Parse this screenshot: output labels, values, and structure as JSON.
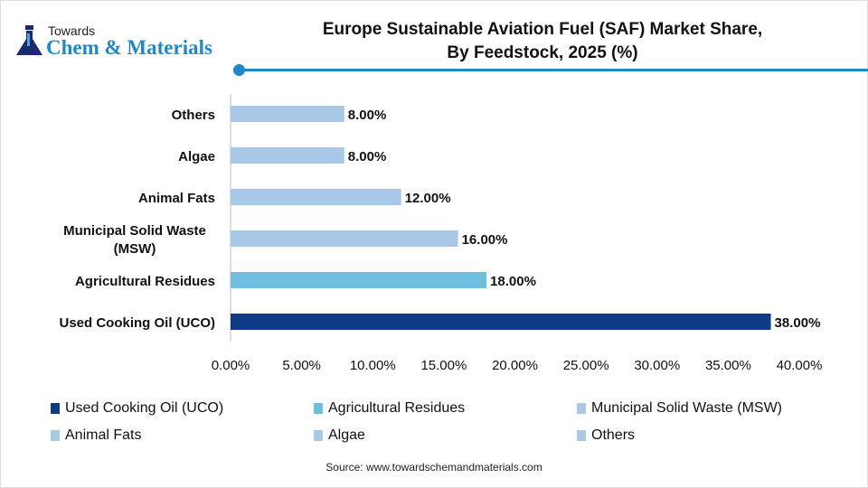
{
  "logo": {
    "line1": "Towards",
    "line2": "Chem & Materials"
  },
  "chart_data": {
    "type": "bar",
    "orientation": "horizontal",
    "title": "Europe Sustainable Aviation Fuel (SAF) Market Share, By Feedstock, 2025 (%)",
    "title_lines": [
      "Europe Sustainable Aviation Fuel (SAF) Market Share,",
      "By Feedstock, 2025 (%)"
    ],
    "categories": [
      "Used Cooking Oil (UCO)",
      "Agricultural Residues",
      "Municipal Solid Waste (MSW)",
      "Animal Fats",
      "Algae",
      "Others"
    ],
    "category_label_lines": [
      [
        "Used Cooking Oil (UCO)"
      ],
      [
        "Agricultural Residues"
      ],
      [
        "Municipal Solid Waste",
        "(MSW)"
      ],
      [
        "Animal Fats"
      ],
      [
        "Algae"
      ],
      [
        "Others"
      ]
    ],
    "values": [
      38,
      18,
      16,
      12,
      8,
      8
    ],
    "data_labels": [
      "38.00%",
      "18.00%",
      "16.00%",
      "12.00%",
      "8.00%",
      "8.00%"
    ],
    "colors": [
      "#0e3a87",
      "#6dbfdf",
      "#a9c8e8",
      "#a9c8e8",
      "#a9c8e8",
      "#a9c8e8"
    ],
    "xlim": [
      0,
      40
    ],
    "xticks": [
      "0.00%",
      "5.00%",
      "10.00%",
      "15.00%",
      "20.00%",
      "25.00%",
      "30.00%",
      "35.00%",
      "40.00%"
    ],
    "grid": false,
    "legend_position": "bottom"
  },
  "source": "Source: www.towardschemandmaterials.com"
}
